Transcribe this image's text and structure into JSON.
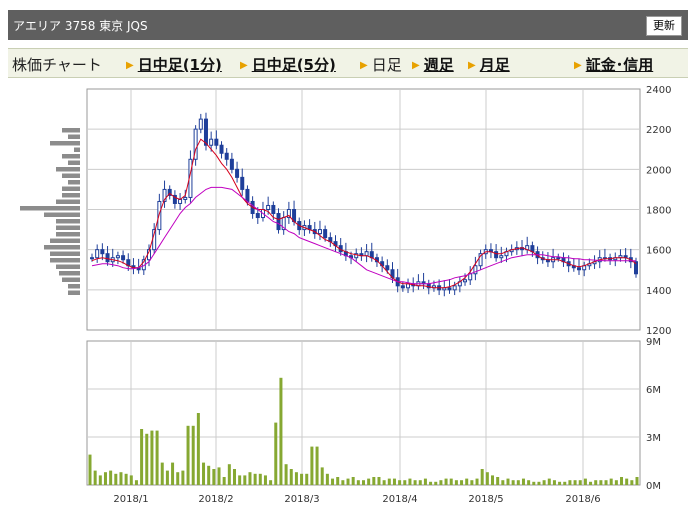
{
  "header": {
    "title": "アエリア 3758 東京 JQS",
    "refresh_label": "更新"
  },
  "tabs": [
    {
      "label": "株価チャート",
      "link": false,
      "arrow": false
    },
    {
      "label": "日中足(1分)",
      "link": true,
      "arrow": true
    },
    {
      "label": "日中足(5分)",
      "link": true,
      "arrow": true
    },
    {
      "label": "日足",
      "link": false,
      "arrow": true
    },
    {
      "label": "週足",
      "link": true,
      "arrow": true
    },
    {
      "label": "月足",
      "link": true,
      "arrow": true
    },
    {
      "label": "証金･信用",
      "link": true,
      "arrow": true
    }
  ],
  "colors": {
    "up_candle": "#ffffff",
    "down_candle": "#1f3f9a",
    "ma_short": "#d6001c",
    "ma_long": "#c000c0",
    "volume": "#86a832",
    "volume_profile": "#8c8c8c",
    "grid": "#cccccc"
  },
  "chart_data": [
    {
      "type": "candlestick",
      "title": "",
      "y_axis_labels": [
        "2400",
        "2200",
        "2000",
        "1800",
        "1600",
        "1400",
        "1200"
      ],
      "ylim": [
        1200,
        2400
      ],
      "x_axis_labels": [
        "2018/1",
        "2018/2",
        "2018/3",
        "2018/4",
        "2018/5",
        "2018/6"
      ],
      "series": [
        {
          "values": [
            1560,
            1600,
            1580,
            1540,
            1560,
            1570,
            1550,
            1520,
            1510,
            1500,
            1550,
            1600,
            1700,
            1840,
            1900,
            1870,
            1830,
            1850,
            1860,
            2050,
            2200,
            2250,
            2120,
            2150,
            2120,
            2080,
            2050,
            2000,
            1960,
            1900,
            1840,
            1780,
            1760,
            1800,
            1820,
            1780,
            1700,
            1760,
            1800,
            1740,
            1700,
            1720,
            1700,
            1680,
            1700,
            1660,
            1640,
            1620,
            1590,
            1570,
            1560,
            1580,
            1570,
            1590,
            1560,
            1540,
            1520,
            1500,
            1460,
            1420,
            1410,
            1430,
            1420,
            1440,
            1430,
            1410,
            1420,
            1400,
            1410,
            1400,
            1420,
            1440,
            1450,
            1480,
            1520,
            1580,
            1600,
            1590,
            1560,
            1570,
            1590,
            1600,
            1610,
            1600,
            1620,
            1590,
            1560,
            1550,
            1540,
            1560,
            1560,
            1540,
            1520,
            1510,
            1500,
            1520,
            1530,
            1540,
            1560,
            1560,
            1550,
            1560,
            1570,
            1560,
            1540,
            1480
          ]
        },
        {
          "name": "",
          "values": [
            1545,
            1555,
            1560,
            1555,
            1550,
            1545,
            1535,
            1520,
            1510,
            1510,
            1540,
            1590,
            1680,
            1780,
            1850,
            1880,
            1860,
            1850,
            1870,
            1980,
            2100,
            2150,
            2130,
            2100,
            2070,
            2030,
            2000,
            1960,
            1910,
            1860,
            1830,
            1810,
            1800,
            1800,
            1790,
            1760,
            1750,
            1760,
            1770,
            1740,
            1720,
            1710,
            1700,
            1690,
            1670,
            1650,
            1640,
            1620,
            1600,
            1590,
            1580,
            1575,
            1570,
            1570,
            1560,
            1545,
            1520,
            1490,
            1460,
            1440,
            1430,
            1430,
            1425,
            1420,
            1420,
            1415,
            1410,
            1410,
            1410,
            1415,
            1425,
            1440,
            1460,
            1490,
            1530,
            1570,
            1590,
            1590,
            1580,
            1580,
            1590,
            1600,
            1605,
            1610,
            1600,
            1590,
            1570,
            1555,
            1550,
            1550,
            1550,
            1540,
            1530,
            1520,
            1515,
            1520,
            1530,
            1540,
            1550,
            1555,
            1555,
            1560,
            1560,
            1560,
            1550,
            1530
          ]
        },
        {
          "name": "",
          "values": [
            1520,
            1525,
            1530,
            1530,
            1525,
            1520,
            1510,
            1505,
            1505,
            1510,
            1520,
            1540,
            1580,
            1620,
            1660,
            1700,
            1740,
            1780,
            1810,
            1830,
            1860,
            1880,
            1900,
            1910,
            1910,
            1910,
            1905,
            1900,
            1880,
            1860,
            1840,
            1820,
            1800,
            1780,
            1760,
            1740,
            1730,
            1710,
            1690,
            1680,
            1660,
            1650,
            1640,
            1630,
            1620,
            1610,
            1600,
            1590,
            1580,
            1570,
            1560,
            1540,
            1520,
            1500,
            1490,
            1480,
            1470,
            1460,
            1450,
            1440,
            1440,
            1435,
            1430,
            1430,
            1430,
            1430,
            1435,
            1440,
            1445,
            1450,
            1460,
            1465,
            1470,
            1480,
            1490,
            1500,
            1510,
            1520,
            1530,
            1540,
            1550,
            1560,
            1565,
            1570,
            1575,
            1575,
            1575,
            1575,
            1570,
            1565,
            1565,
            1560,
            1560,
            1555,
            1555,
            1550,
            1550,
            1548,
            1546,
            1545,
            1545,
            1545,
            1545,
            1545,
            1545,
            1545
          ]
        }
      ],
      "volume_profile": [
        0.3,
        0.2,
        0.5,
        0.1,
        0.3,
        0.2,
        0.4,
        0.3,
        0.2,
        0.3,
        0.3,
        0.4,
        1.0,
        0.6,
        0.4,
        0.4,
        0.4,
        0.5,
        0.6,
        0.5,
        0.5,
        0.4,
        0.35,
        0.3,
        0.2,
        0.2
      ]
    },
    {
      "type": "bar",
      "title": "",
      "y_axis_labels": [
        "9M",
        "6M",
        "3M",
        "0M"
      ],
      "ylim": [
        0,
        9
      ],
      "x_axis_labels": [
        "2018/1",
        "2018/2",
        "2018/3",
        "2018/4",
        "2018/5",
        "2018/6"
      ],
      "values": [
        1.9,
        0.9,
        0.6,
        0.8,
        0.9,
        0.7,
        0.8,
        0.7,
        0.6,
        0.3,
        3.5,
        3.2,
        3.4,
        3.4,
        1.4,
        0.9,
        1.4,
        0.8,
        0.9,
        3.7,
        3.7,
        4.5,
        1.4,
        1.2,
        1.0,
        1.1,
        0.5,
        1.3,
        1.0,
        0.6,
        0.6,
        0.8,
        0.7,
        0.7,
        0.6,
        0.3,
        3.9,
        6.7,
        1.3,
        1.0,
        0.8,
        0.7,
        0.7,
        2.4,
        2.4,
        1.1,
        0.7,
        0.4,
        0.5,
        0.3,
        0.4,
        0.5,
        0.3,
        0.3,
        0.4,
        0.5,
        0.5,
        0.3,
        0.4,
        0.4,
        0.3,
        0.3,
        0.4,
        0.3,
        0.3,
        0.4,
        0.2,
        0.2,
        0.3,
        0.4,
        0.4,
        0.3,
        0.3,
        0.4,
        0.3,
        0.4,
        1.0,
        0.8,
        0.6,
        0.5,
        0.3,
        0.4,
        0.3,
        0.3,
        0.4,
        0.3,
        0.2,
        0.2,
        0.3,
        0.4,
        0.3,
        0.2,
        0.2,
        0.3,
        0.3,
        0.3,
        0.4,
        0.2,
        0.3,
        0.3,
        0.3,
        0.4,
        0.3,
        0.5,
        0.4,
        0.3,
        0.5
      ]
    }
  ]
}
